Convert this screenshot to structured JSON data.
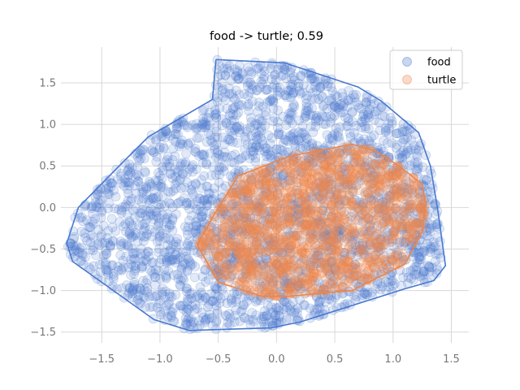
{
  "chart_data": {
    "type": "scatter",
    "title": "food -> turtle; 0.59",
    "xlabel": "",
    "ylabel": "",
    "xlim": [
      -1.85,
      1.65
    ],
    "ylim": [
      -1.63,
      1.93
    ],
    "xticks": [
      -1.5,
      -1.0,
      -0.5,
      0.0,
      0.5,
      1.0,
      1.5
    ],
    "xtick_labels": [
      "−1.5",
      "−1.0",
      "−0.5",
      "0.0",
      "0.5",
      "1.0",
      "1.5"
    ],
    "yticks": [
      -1.5,
      -1.0,
      -0.5,
      0.0,
      0.5,
      1.0,
      1.5
    ],
    "ytick_labels": [
      "−1.5",
      "−1.0",
      "−0.5",
      "0.0",
      "0.5",
      "1.0",
      "1.5"
    ],
    "grid": true,
    "legend_position": "top-right",
    "series": [
      {
        "name": "food",
        "color": "#4878d0",
        "hull": [
          [
            -0.52,
            1.78
          ],
          [
            -0.22,
            1.76
          ],
          [
            0.07,
            1.74
          ],
          [
            0.7,
            1.45
          ],
          [
            0.9,
            1.28
          ],
          [
            1.22,
            0.9
          ],
          [
            1.32,
            0.5
          ],
          [
            1.38,
            0.0
          ],
          [
            1.45,
            -0.7
          ],
          [
            1.35,
            -0.88
          ],
          [
            1.1,
            -0.98
          ],
          [
            0.2,
            -1.38
          ],
          [
            -0.05,
            -1.45
          ],
          [
            -0.75,
            -1.48
          ],
          [
            -1.05,
            -1.35
          ],
          [
            -1.5,
            -0.9
          ],
          [
            -1.75,
            -0.65
          ],
          [
            -1.8,
            -0.43
          ],
          [
            -1.7,
            0.0
          ],
          [
            -1.35,
            0.5
          ],
          [
            -1.1,
            0.85
          ],
          [
            -0.55,
            1.3
          ],
          [
            -0.52,
            1.78
          ]
        ]
      },
      {
        "name": "turtle",
        "color": "#ee854a",
        "hull": [
          [
            -0.33,
            0.38
          ],
          [
            0.12,
            0.62
          ],
          [
            0.65,
            0.76
          ],
          [
            0.85,
            0.68
          ],
          [
            1.05,
            0.5
          ],
          [
            1.25,
            0.28
          ],
          [
            1.28,
            0.05
          ],
          [
            1.25,
            -0.3
          ],
          [
            1.1,
            -0.68
          ],
          [
            0.65,
            -1.0
          ],
          [
            0.1,
            -1.07
          ],
          [
            -0.12,
            -1.07
          ],
          [
            -0.5,
            -0.9
          ],
          [
            -0.68,
            -0.45
          ],
          [
            -0.52,
            -0.05
          ],
          [
            -0.33,
            0.38
          ]
        ]
      }
    ]
  }
}
